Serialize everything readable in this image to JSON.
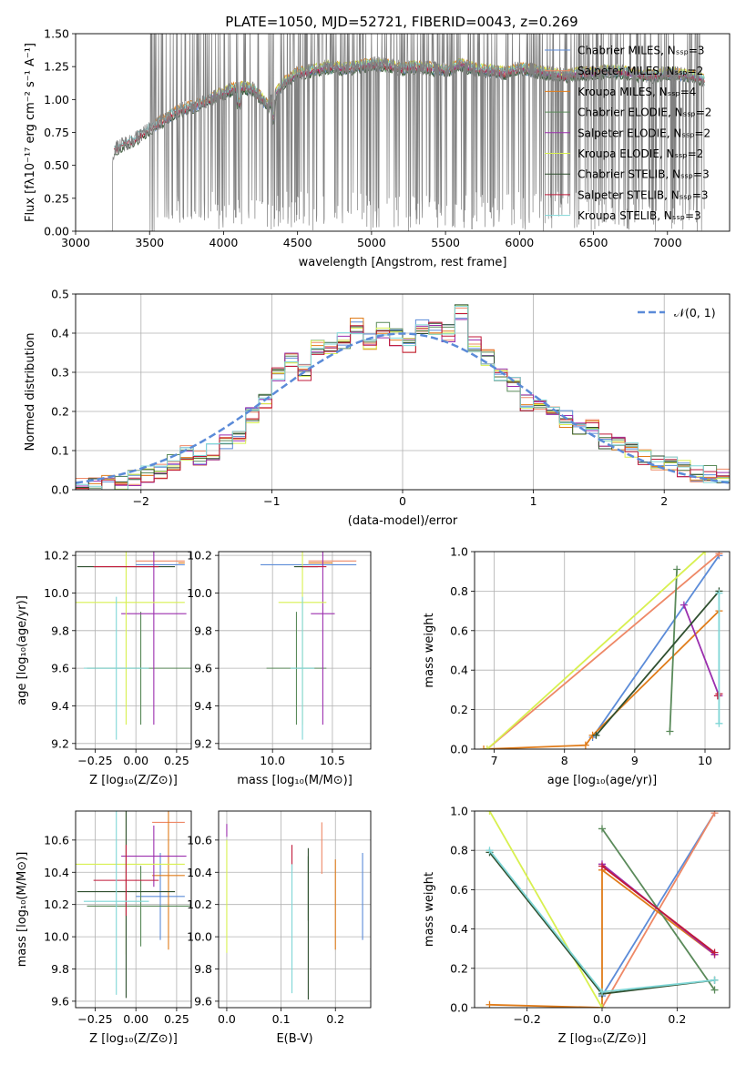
{
  "title": "PLATE=1050, MJD=52721, FIBERID=0043, z=0.269",
  "colors": {
    "Chabrier MILES": "#5b8bd8",
    "Salpeter MILES": "#ee8866",
    "Kroupa MILES": "#e07c1a",
    "Chabrier ELODIE": "#5a8a5a",
    "Salpeter ELODIE": "#9b2fae",
    "Kroupa ELODIE": "#d8f050",
    "Chabrier STELIB": "#2f4f2f",
    "Salpeter STELIB": "#c01a3a",
    "Kroupa STELIB": "#7fd6d6",
    "spectrum": "#808080",
    "gaussian": "#5b8bd8"
  },
  "chart_data": [
    {
      "id": "spectrum",
      "type": "line",
      "xlabel": "wavelength [Angstrom, rest frame]",
      "ylabel": "Flux [fλ10⁻¹⁷ erg cm⁻² s⁻¹ A⁻¹]",
      "xlim": [
        3000,
        7420
      ],
      "ylim": [
        0,
        1.5
      ],
      "xticks": [
        "3000",
        "3500",
        "4000",
        "4500",
        "5000",
        "5500",
        "6000",
        "6500",
        "7000"
      ],
      "yticks": [
        "0.00",
        "0.25",
        "0.50",
        "0.75",
        "1.00",
        "1.25",
        "1.50"
      ],
      "legend_position": "top-right",
      "legend": [
        {
          "model": "Chabrier MILES",
          "label": "Chabrier MILES, Nₛₛₚ=3"
        },
        {
          "model": "Salpeter MILES",
          "label": "Salpeter MILES, Nₛₛₚ=2"
        },
        {
          "model": "Kroupa MILES",
          "label": "Kroupa MILES, Nₛₛₚ=4"
        },
        {
          "model": "Chabrier ELODIE",
          "label": "Chabrier ELODIE, Nₛₛₚ=2"
        },
        {
          "model": "Salpeter ELODIE",
          "label": "Salpeter ELODIE, Nₛₛₚ=2"
        },
        {
          "model": "Kroupa ELODIE",
          "label": "Kroupa ELODIE, Nₛₛₚ=2"
        },
        {
          "model": "Chabrier STELIB",
          "label": "Chabrier STELIB, Nₛₛₚ=3"
        },
        {
          "model": "Salpeter STELIB",
          "label": "Salpeter STELIB, Nₛₛₚ=3"
        },
        {
          "model": "Kroupa STELIB",
          "label": "Kroupa STELIB, Nₛₛₚ=3"
        }
      ],
      "model_continuum": {
        "x": [
          3200,
          3260,
          3300,
          3400,
          3500,
          3600,
          3700,
          3800,
          3900,
          4000,
          4100,
          4200,
          4300,
          4400,
          4500,
          4600,
          4700,
          4800,
          4900,
          5000,
          5100,
          5200,
          5300,
          5400,
          5500,
          5600,
          5700,
          5800,
          5900,
          6000,
          6100,
          6200,
          6300,
          6400,
          6500,
          6600,
          6700,
          6800,
          6900,
          7000,
          7100,
          7200,
          7250
        ],
        "y": [
          0.0,
          0.62,
          0.65,
          0.7,
          0.78,
          0.85,
          0.92,
          0.95,
          1.0,
          1.05,
          1.1,
          1.08,
          0.95,
          1.12,
          1.2,
          1.22,
          1.25,
          1.24,
          1.25,
          1.27,
          1.26,
          1.24,
          1.25,
          1.24,
          1.22,
          1.27,
          1.23,
          1.22,
          1.2,
          1.24,
          1.22,
          1.2,
          1.18,
          1.2,
          1.2,
          1.22,
          1.21,
          1.19,
          1.18,
          1.2,
          1.19,
          1.17,
          1.15
        ]
      }
    },
    {
      "id": "residuals",
      "type": "bar",
      "xlabel": "(data-model)/error",
      "ylabel": "Normed distribution",
      "xlim": [
        -2.5,
        2.5
      ],
      "ylim": [
        0,
        0.5
      ],
      "xticks": [
        "−2",
        "−1",
        "0",
        "1",
        "2"
      ],
      "yticks": [
        "0.0",
        "0.1",
        "0.2",
        "0.3",
        "0.4",
        "0.5"
      ],
      "legend_position": "top-right",
      "gaussian_label": "𝒩(0, 1)",
      "bin_width": 0.1,
      "bin_centers": [
        -2.45,
        -2.35,
        -2.25,
        -2.15,
        -2.05,
        -1.95,
        -1.85,
        -1.75,
        -1.65,
        -1.55,
        -1.45,
        -1.35,
        -1.25,
        -1.15,
        -1.05,
        -0.95,
        -0.85,
        -0.75,
        -0.65,
        -0.55,
        -0.45,
        -0.35,
        -0.25,
        -0.15,
        -0.05,
        0.05,
        0.15,
        0.25,
        0.35,
        0.45,
        0.55,
        0.65,
        0.75,
        0.85,
        0.95,
        1.05,
        1.15,
        1.25,
        1.35,
        1.45,
        1.55,
        1.65,
        1.75,
        1.85,
        1.95,
        2.05,
        2.15,
        2.25,
        2.35,
        2.45
      ],
      "histogram_mean": [
        0.01,
        0.008,
        0.015,
        0.02,
        0.03,
        0.038,
        0.05,
        0.07,
        0.09,
        0.08,
        0.095,
        0.12,
        0.14,
        0.19,
        0.23,
        0.29,
        0.33,
        0.3,
        0.36,
        0.37,
        0.38,
        0.42,
        0.38,
        0.41,
        0.39,
        0.37,
        0.42,
        0.41,
        0.4,
        0.45,
        0.37,
        0.34,
        0.3,
        0.27,
        0.22,
        0.21,
        0.2,
        0.18,
        0.16,
        0.165,
        0.12,
        0.12,
        0.1,
        0.08,
        0.065,
        0.062,
        0.055,
        0.04,
        0.04,
        0.032
      ]
    },
    {
      "id": "age_vs_Z",
      "type": "scatter",
      "xlabel": "Z [log₁₀(Z/Z⊙)]",
      "ylabel": "age  [log₁₀(age/yr)]",
      "xlim": [
        -0.37,
        0.34
      ],
      "ylim": [
        9.17,
        10.22
      ],
      "xticks": [
        "−0.25",
        "0.00",
        "0.25"
      ],
      "yticks": [
        "9.2",
        "9.4",
        "9.6",
        "9.8",
        "10.0",
        "10.2"
      ],
      "points": [
        {
          "model": "Chabrier MILES",
          "x": 0.15,
          "y": 10.15,
          "xerr": 0.15,
          "yerr": 0.0
        },
        {
          "model": "Salpeter MILES",
          "x": 0.15,
          "y": 10.17,
          "xerr": 0.15,
          "yerr": 0.0
        },
        {
          "model": "Kroupa MILES",
          "x": 0.28,
          "y": 10.16,
          "xerr": 0.02,
          "yerr": 0.0
        },
        {
          "model": "Chabrier ELODIE",
          "x": 0.03,
          "y": 9.6,
          "xerr": 0.33,
          "yerr": 0.3
        },
        {
          "model": "Salpeter ELODIE",
          "x": 0.11,
          "y": 9.89,
          "xerr": 0.2,
          "yerr": 0.59
        },
        {
          "model": "Kroupa ELODIE",
          "x": -0.06,
          "y": 9.95,
          "xerr": 0.36,
          "yerr": 0.65
        },
        {
          "model": "Chabrier STELIB",
          "x": -0.06,
          "y": 10.14,
          "xerr": 0.3,
          "yerr": 0.0
        },
        {
          "model": "Salpeter STELIB",
          "x": -0.06,
          "y": 10.14,
          "xerr": 0.2,
          "yerr": 0.0
        },
        {
          "model": "Kroupa STELIB",
          "x": -0.12,
          "y": 9.6,
          "xerr": 0.2,
          "yerr": 0.38
        }
      ]
    },
    {
      "id": "age_vs_mass",
      "type": "scatter",
      "xlabel": "mass [log₁₀(M/M⊙)]",
      "ylabel": "",
      "xlim": [
        9.55,
        10.82
      ],
      "ylim": [
        9.17,
        10.22
      ],
      "xticks": [
        "10.0",
        "10.5"
      ],
      "yticks": [
        "9.2",
        "9.4",
        "9.6",
        "9.8",
        "10.0",
        "10.2"
      ],
      "points": [
        {
          "model": "Chabrier MILES",
          "x": 10.3,
          "y": 10.15,
          "xerr": 0.4,
          "yerr": 0.0
        },
        {
          "model": "Salpeter MILES",
          "x": 10.5,
          "y": 10.17,
          "xerr": 0.2,
          "yerr": 0.0
        },
        {
          "model": "Kroupa MILES",
          "x": 10.4,
          "y": 10.16,
          "xerr": 0.1,
          "yerr": 0.0
        },
        {
          "model": "Chabrier ELODIE",
          "x": 10.2,
          "y": 9.6,
          "xerr": 0.25,
          "yerr": 0.3
        },
        {
          "model": "Salpeter ELODIE",
          "x": 10.42,
          "y": 9.89,
          "xerr": 0.1,
          "yerr": 0.59
        },
        {
          "model": "Kroupa ELODIE",
          "x": 10.25,
          "y": 9.95,
          "xerr": 0.2,
          "yerr": 0.65
        },
        {
          "model": "Chabrier STELIB",
          "x": 10.28,
          "y": 10.14,
          "xerr": 0.1,
          "yerr": 0.0
        },
        {
          "model": "Salpeter STELIB",
          "x": 10.35,
          "y": 10.14,
          "xerr": 0.1,
          "yerr": 0.0
        },
        {
          "model": "Kroupa STELIB",
          "x": 10.25,
          "y": 9.6,
          "xerr": 0.1,
          "yerr": 0.38
        }
      ]
    },
    {
      "id": "massweight_vs_age",
      "type": "line",
      "xlabel": "age  [log₁₀(age/yr)]",
      "ylabel": "mass weight",
      "xlim": [
        6.72,
        10.35
      ],
      "ylim": [
        0,
        1.0
      ],
      "xticks": [
        "7",
        "8",
        "9",
        "10"
      ],
      "yticks": [
        "0.0",
        "0.2",
        "0.4",
        "0.6",
        "0.8",
        "1.0"
      ],
      "series": [
        {
          "model": "Chabrier MILES",
          "x": [
            8.4,
            10.2
          ],
          "y": [
            0.06,
            0.98
          ]
        },
        {
          "model": "Salpeter MILES",
          "x": [
            6.9,
            10.2
          ],
          "y": [
            0.0,
            0.99
          ]
        },
        {
          "model": "Kroupa MILES",
          "x": [
            6.85,
            8.3,
            8.4,
            10.2
          ],
          "y": [
            0.0,
            0.02,
            0.07,
            0.7
          ]
        },
        {
          "model": "Chabrier ELODIE",
          "x": [
            9.5,
            9.6
          ],
          "y": [
            0.09,
            0.91
          ]
        },
        {
          "model": "Salpeter ELODIE",
          "x": [
            9.7,
            10.2
          ],
          "y": [
            0.73,
            0.27
          ]
        },
        {
          "model": "Kroupa ELODIE",
          "x": [
            6.9,
            10.0
          ],
          "y": [
            0.0,
            1.0
          ]
        },
        {
          "model": "Chabrier STELIB",
          "x": [
            8.45,
            10.2
          ],
          "y": [
            0.07,
            0.8
          ]
        },
        {
          "model": "Salpeter STELIB",
          "x": [
            10.18,
            10.2
          ],
          "y": [
            0.27,
            0.28
          ]
        },
        {
          "model": "Kroupa STELIB",
          "x": [
            10.2,
            10.2
          ],
          "y": [
            0.13,
            0.79
          ]
        }
      ]
    },
    {
      "id": "mass_vs_Z",
      "type": "scatter",
      "xlabel": "Z [log₁₀(Z/Z⊙)]",
      "ylabel": "mass [log₁₀(M/M⊙)]",
      "xlim": [
        -0.37,
        0.34
      ],
      "ylim": [
        9.56,
        10.78
      ],
      "xticks": [
        "−0.25",
        "0.00",
        "0.25"
      ],
      "yticks": [
        "9.6",
        "9.8",
        "10.0",
        "10.2",
        "10.4",
        "10.6"
      ],
      "points": [
        {
          "model": "Chabrier MILES",
          "x": 0.15,
          "y": 10.25,
          "xerr": 0.15,
          "yerr": 0.27
        },
        {
          "model": "Salpeter MILES",
          "x": 0.2,
          "y": 10.71,
          "xerr": 0.1,
          "yerr": 0.0
        },
        {
          "model": "Kroupa MILES",
          "x": 0.2,
          "y": 10.38,
          "xerr": 0.1,
          "yerr": 0.46
        },
        {
          "model": "Chabrier ELODIE",
          "x": 0.03,
          "y": 10.19,
          "xerr": 0.33,
          "yerr": 0.25
        },
        {
          "model": "Salpeter ELODIE",
          "x": 0.11,
          "y": 10.5,
          "xerr": 0.2,
          "yerr": 0.19
        },
        {
          "model": "Kroupa ELODIE",
          "x": -0.06,
          "y": 10.45,
          "xerr": 0.36,
          "yerr": 0.56
        },
        {
          "model": "Chabrier STELIB",
          "x": -0.06,
          "y": 10.28,
          "xerr": 0.3,
          "yerr": 0.66
        },
        {
          "model": "Salpeter STELIB",
          "x": -0.06,
          "y": 10.35,
          "xerr": 0.2,
          "yerr": 0.22
        },
        {
          "model": "Kroupa STELIB",
          "x": -0.12,
          "y": 10.22,
          "xerr": 0.2,
          "yerr": 0.58
        }
      ]
    },
    {
      "id": "mass_vs_EBV",
      "type": "scatter",
      "xlabel": "E(B-V)",
      "ylabel": "",
      "xlim": [
        -0.015,
        0.265
      ],
      "ylim": [
        9.56,
        10.78
      ],
      "xticks": [
        "0.0",
        "0.1",
        "0.2"
      ],
      "yticks": [
        "9.6",
        "9.8",
        "10.0",
        "10.2",
        "10.4",
        "10.6"
      ],
      "points": [
        {
          "model": "Chabrier MILES",
          "x": 0.25,
          "y": 10.25,
          "xerr": 0.0,
          "yerr": 0.27
        },
        {
          "model": "Salpeter MILES",
          "x": 0.175,
          "y": 10.55,
          "xerr": 0.0,
          "yerr": 0.16
        },
        {
          "model": "Kroupa MILES",
          "x": 0.2,
          "y": 10.2,
          "xerr": 0.0,
          "yerr": 0.28
        },
        {
          "model": "Chabrier ELODIE",
          "x": 0.15,
          "y": 10.3,
          "xerr": 0.0,
          "yerr": 0.2
        },
        {
          "model": "Salpeter ELODIE",
          "x": 0.0,
          "y": 10.66,
          "xerr": 0.0,
          "yerr": 0.04
        },
        {
          "model": "Kroupa ELODIE",
          "x": 0.0,
          "y": 10.25,
          "xerr": 0.0,
          "yerr": 0.35
        },
        {
          "model": "Chabrier STELIB",
          "x": 0.15,
          "y": 10.08,
          "xerr": 0.0,
          "yerr": 0.47
        },
        {
          "model": "Salpeter STELIB",
          "x": 0.12,
          "y": 10.49,
          "xerr": 0.0,
          "yerr": 0.08
        },
        {
          "model": "Kroupa STELIB",
          "x": 0.12,
          "y": 10.05,
          "xerr": 0.0,
          "yerr": 0.4
        }
      ]
    },
    {
      "id": "massweight_vs_Z",
      "type": "line",
      "xlabel": "Z [log₁₀(Z/Z⊙)]",
      "ylabel": "mass weight",
      "xlim": [
        -0.34,
        0.34
      ],
      "ylim": [
        0,
        1.0
      ],
      "xticks": [
        "−0.2",
        "0.0",
        "0.2"
      ],
      "yticks": [
        "0.0",
        "0.2",
        "0.4",
        "0.6",
        "0.8",
        "1.0"
      ],
      "series": [
        {
          "model": "Chabrier MILES",
          "x": [
            0.0,
            0.3
          ],
          "y": [
            0.06,
            0.99
          ]
        },
        {
          "model": "Salpeter MILES",
          "x": [
            0.0,
            0.3
          ],
          "y": [
            0.0,
            0.99
          ]
        },
        {
          "model": "Kroupa MILES",
          "x": [
            -0.3,
            0.0,
            0.0,
            0.3
          ],
          "y": [
            0.015,
            0.0,
            0.7,
            0.27
          ]
        },
        {
          "model": "Chabrier ELODIE",
          "x": [
            0.0,
            0.3
          ],
          "y": [
            0.91,
            0.09
          ]
        },
        {
          "model": "Salpeter ELODIE",
          "x": [
            0.0,
            0.3
          ],
          "y": [
            0.73,
            0.27
          ]
        },
        {
          "model": "Kroupa ELODIE",
          "x": [
            -0.3,
            0.0
          ],
          "y": [
            1.0,
            0.0
          ]
        },
        {
          "model": "Chabrier STELIB",
          "x": [
            -0.3,
            0.0,
            0.3
          ],
          "y": [
            0.79,
            0.07,
            0.14
          ]
        },
        {
          "model": "Salpeter STELIB",
          "x": [
            0.0,
            0.3
          ],
          "y": [
            0.72,
            0.28
          ]
        },
        {
          "model": "Kroupa STELIB",
          "x": [
            -0.3,
            0.0,
            0.3
          ],
          "y": [
            0.8,
            0.08,
            0.14
          ]
        }
      ]
    }
  ]
}
